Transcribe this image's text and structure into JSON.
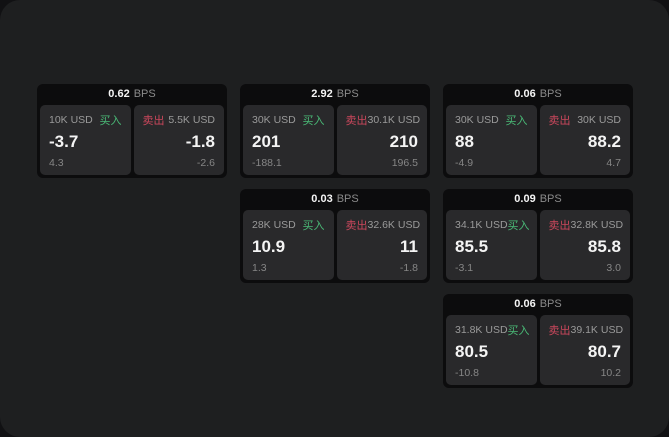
{
  "labels": {
    "bps": "BPS",
    "buy": "买入",
    "sell": "卖出"
  },
  "colors": {
    "buy_green": "#4aba77",
    "sell_red": "#cb475c",
    "window_bg": "#1e1f20",
    "card_bg": "#0c0c0d",
    "panel_bg": "#29292b"
  },
  "cards": [
    {
      "bps": "0.62",
      "buy": {
        "amount": "10K USD",
        "value": "-3.7",
        "delta": "4.3"
      },
      "sell": {
        "amount": "5.5K USD",
        "value": "-1.8",
        "delta": "-2.6"
      }
    },
    {
      "bps": "2.92",
      "buy": {
        "amount": "30K USD",
        "value": "201",
        "delta": "-188.1"
      },
      "sell": {
        "amount": "30.1K USD",
        "value": "210",
        "delta": "196.5"
      }
    },
    {
      "bps": "0.06",
      "buy": {
        "amount": "30K USD",
        "value": "88",
        "delta": "-4.9"
      },
      "sell": {
        "amount": "30K USD",
        "value": "88.2",
        "delta": "4.7"
      }
    },
    {
      "bps": "0.03",
      "buy": {
        "amount": "28K USD",
        "value": "10.9",
        "delta": "1.3"
      },
      "sell": {
        "amount": "32.6K USD",
        "value": "11",
        "delta": "-1.8"
      }
    },
    {
      "bps": "0.09",
      "buy": {
        "amount": "34.1K USD",
        "value": "85.5",
        "delta": "-3.1"
      },
      "sell": {
        "amount": "32.8K USD",
        "value": "85.8",
        "delta": "3.0"
      }
    },
    {
      "bps": "0.06",
      "buy": {
        "amount": "31.8K USD",
        "value": "80.5",
        "delta": "-10.8"
      },
      "sell": {
        "amount": "39.1K USD",
        "value": "80.7",
        "delta": "10.2"
      }
    }
  ]
}
